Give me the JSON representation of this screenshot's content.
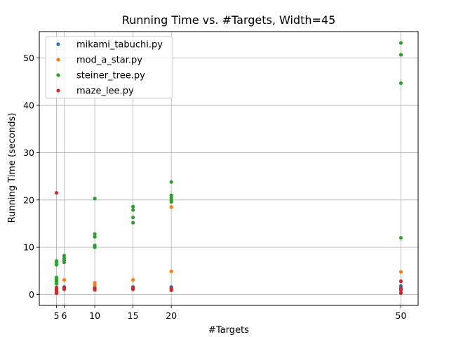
{
  "chart_data": {
    "type": "scatter",
    "title": "Running Time vs. #Targets, Width=45",
    "xlabel": "#Targets",
    "ylabel": "Running Time (seconds)",
    "xlim": [
      2.75,
      52.25
    ],
    "ylim": [
      -2.3,
      55.6
    ],
    "xticks": [
      5,
      6,
      10,
      15,
      20,
      50
    ],
    "yticks": [
      0,
      10,
      20,
      30,
      40,
      50
    ],
    "grid": true,
    "legend_position": "top-left",
    "series": [
      {
        "name": "mikami_tabuchi.py",
        "color": "#1f77b4",
        "points": [
          [
            5,
            0.5
          ],
          [
            5,
            1.0
          ],
          [
            5,
            1.5
          ],
          [
            6,
            1.3
          ],
          [
            6,
            1.6
          ],
          [
            10,
            1.2
          ],
          [
            10,
            1.5
          ],
          [
            15,
            1.3
          ],
          [
            15,
            1.6
          ],
          [
            20,
            1.2
          ],
          [
            20,
            1.6
          ],
          [
            50,
            1.0
          ],
          [
            50,
            1.8
          ]
        ]
      },
      {
        "name": "mod_a_star.py",
        "color": "#ff7f0e",
        "points": [
          [
            5,
            1.3
          ],
          [
            6,
            3.1
          ],
          [
            10,
            2.5
          ],
          [
            10,
            2.0
          ],
          [
            15,
            3.1
          ],
          [
            20,
            18.5
          ],
          [
            20,
            4.9
          ],
          [
            50,
            4.8
          ]
        ]
      },
      {
        "name": "steiner_tree.py",
        "color": "#2ca02c",
        "points": [
          [
            5,
            7.1
          ],
          [
            5,
            6.8
          ],
          [
            5,
            6.3
          ],
          [
            5,
            3.6
          ],
          [
            5,
            3.2
          ],
          [
            5,
            2.8
          ],
          [
            5,
            2.3
          ],
          [
            6,
            8.2
          ],
          [
            6,
            7.7
          ],
          [
            6,
            7.2
          ],
          [
            6,
            6.8
          ],
          [
            10,
            20.3
          ],
          [
            10,
            12.8
          ],
          [
            10,
            12.2
          ],
          [
            10,
            10.4
          ],
          [
            10,
            10.0
          ],
          [
            15,
            18.6
          ],
          [
            15,
            17.9
          ],
          [
            15,
            16.3
          ],
          [
            15,
            15.2
          ],
          [
            20,
            23.8
          ],
          [
            20,
            21.0
          ],
          [
            20,
            20.5
          ],
          [
            20,
            20.0
          ],
          [
            20,
            19.6
          ],
          [
            50,
            53.2
          ],
          [
            50,
            50.7
          ],
          [
            50,
            44.7
          ],
          [
            50,
            12.0
          ]
        ]
      },
      {
        "name": "maze_lee.py",
        "color": "#d62728",
        "points": [
          [
            5,
            21.5
          ],
          [
            5,
            1.4
          ],
          [
            5,
            0.9
          ],
          [
            5,
            0.5
          ],
          [
            5,
            0.3
          ],
          [
            6,
            1.1
          ],
          [
            6,
            1.5
          ],
          [
            10,
            1.0
          ],
          [
            10,
            1.3
          ],
          [
            15,
            1.1
          ],
          [
            15,
            1.4
          ],
          [
            20,
            0.9
          ],
          [
            20,
            1.3
          ],
          [
            50,
            2.8
          ],
          [
            50,
            1.3
          ],
          [
            50,
            0.9
          ],
          [
            50,
            0.3
          ]
        ]
      }
    ]
  }
}
